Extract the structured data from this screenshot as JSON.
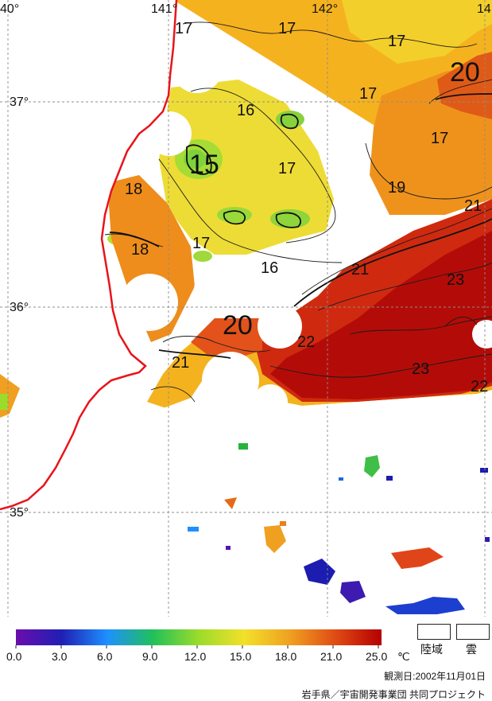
{
  "map": {
    "lon_labels": [
      "40°",
      "141°",
      "142°",
      "14"
    ],
    "lat_labels": [
      "37°",
      "36°",
      "35°"
    ],
    "isotherm_labels": [
      "17",
      "17",
      "17",
      "17",
      "20",
      "16",
      "15",
      "17",
      "17",
      "18",
      "19",
      "21",
      "18",
      "17",
      "16",
      "21",
      "23",
      "20",
      "22",
      "21",
      "23",
      "22"
    ]
  },
  "legend": {
    "colors": [
      "#6a0dad",
      "#1f1fb4",
      "#1e90ff",
      "#21c05a",
      "#9bdc2a",
      "#f2e02a",
      "#f0a020",
      "#e04a14",
      "#b40000"
    ],
    "ticks": [
      "0.0",
      "3.0",
      "6.0",
      "9.0",
      "12.0",
      "15.0",
      "18.0",
      "21.0",
      "25.0"
    ],
    "unit": "℃",
    "land_label": "陸域",
    "cloud_label": "雲"
  },
  "footer": {
    "observation_date": "観測日:2002年11月01日",
    "credit": "岩手県／宇宙開発事業団 共同プロジェクト"
  }
}
